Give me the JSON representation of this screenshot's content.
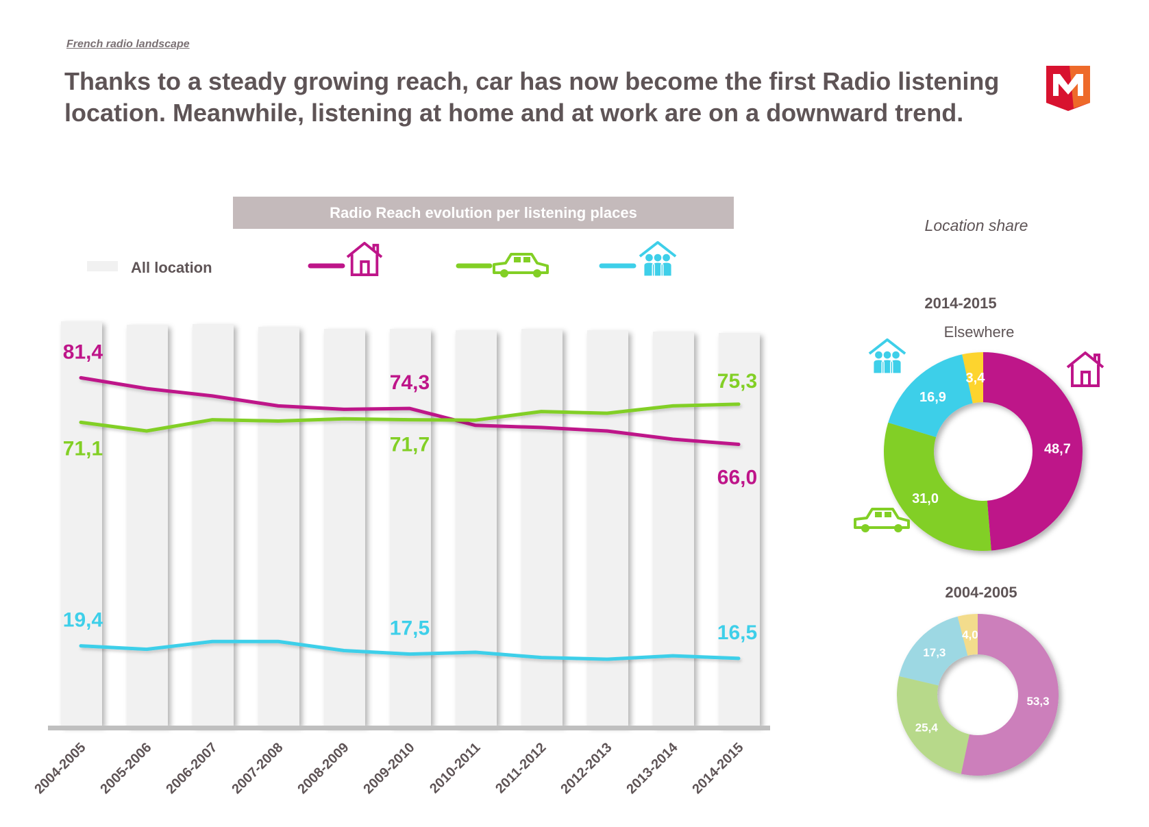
{
  "header": {
    "kicker": "French radio landscape",
    "headline": "Thanks to a steady growing reach, car has now become the first Radio listening location. Meanwhile, listening at home and at work are on a downward trend.",
    "logo_letter": "M"
  },
  "colors": {
    "home": "#be1589",
    "car": "#82cf25",
    "work": "#3ecfe9",
    "elsewhere": "#fdd42f",
    "home_faded": "#cc7fbb",
    "car_faded": "#b7d98a",
    "work_faded": "#9dd8e3",
    "elsewhere_faded": "#f3dc8c",
    "bar": "#f1f1f1",
    "banner": "#c4babb",
    "text": "#5e5456"
  },
  "chart_data": [
    {
      "type": "line",
      "title": "Radio Reach evolution per listening places",
      "legend": [
        {
          "label": "All location",
          "icon": "bar-swatch"
        },
        {
          "label": "",
          "icon": "house-icon",
          "series": "home"
        },
        {
          "label": "",
          "icon": "car-icon",
          "series": "car"
        },
        {
          "label": "",
          "icon": "people-icon",
          "series": "work"
        }
      ],
      "categories": [
        "2004-2005",
        "2005-2006",
        "2006-2007",
        "2007-2008",
        "2008-2009",
        "2009-2010",
        "2010-2011",
        "2011-2012",
        "2012-2013",
        "2013-2014",
        "2014-2015"
      ],
      "series": [
        {
          "key": "home",
          "icon": "house-icon",
          "values": [
            81.4,
            78.9,
            77.2,
            74.9,
            74.1,
            74.3,
            70.4,
            69.9,
            69.1,
            67.2,
            66.0
          ]
        },
        {
          "key": "car",
          "icon": "car-icon",
          "values": [
            71.1,
            69.1,
            71.7,
            71.4,
            71.9,
            71.7,
            71.6,
            73.6,
            73.2,
            74.9,
            75.3
          ]
        },
        {
          "key": "work",
          "icon": "people-icon",
          "values": [
            19.4,
            18.6,
            20.4,
            20.4,
            18.3,
            17.5,
            17.9,
            16.7,
            16.3,
            17.1,
            16.5
          ]
        }
      ],
      "data_labels": [
        {
          "series": "home",
          "index": 0,
          "text": "81,4"
        },
        {
          "series": "home",
          "index": 5,
          "text": "74,3"
        },
        {
          "series": "home",
          "index": 10,
          "text": "66,0"
        },
        {
          "series": "car",
          "index": 0,
          "text": "71,1"
        },
        {
          "series": "car",
          "index": 5,
          "text": "71,7"
        },
        {
          "series": "car",
          "index": 10,
          "text": "75,3"
        },
        {
          "series": "work",
          "index": 0,
          "text": "19,4"
        },
        {
          "series": "work",
          "index": 5,
          "text": "17,5"
        },
        {
          "series": "work",
          "index": 10,
          "text": "16,5"
        }
      ],
      "ylim": [
        0,
        100
      ],
      "grid": false
    },
    {
      "type": "pie",
      "donut": true,
      "title": "Location share",
      "subtitle": "2014-2015",
      "annotation": "Elsewhere",
      "slices": [
        {
          "key": "home",
          "value": 48.7,
          "label": "48,7"
        },
        {
          "key": "car",
          "value": 31.0,
          "label": "31,0"
        },
        {
          "key": "work",
          "value": 16.9,
          "label": "16,9"
        },
        {
          "key": "elsewhere",
          "value": 3.4,
          "label": "3,4"
        }
      ]
    },
    {
      "type": "pie",
      "donut": true,
      "subtitle": "2004-2005",
      "slices": [
        {
          "key": "home",
          "value": 53.3,
          "label": "53,3"
        },
        {
          "key": "car",
          "value": 25.4,
          "label": "25,4"
        },
        {
          "key": "work",
          "value": 17.3,
          "label": "17,3"
        },
        {
          "key": "elsewhere",
          "value": 4.0,
          "label": "4,0"
        }
      ]
    }
  ]
}
